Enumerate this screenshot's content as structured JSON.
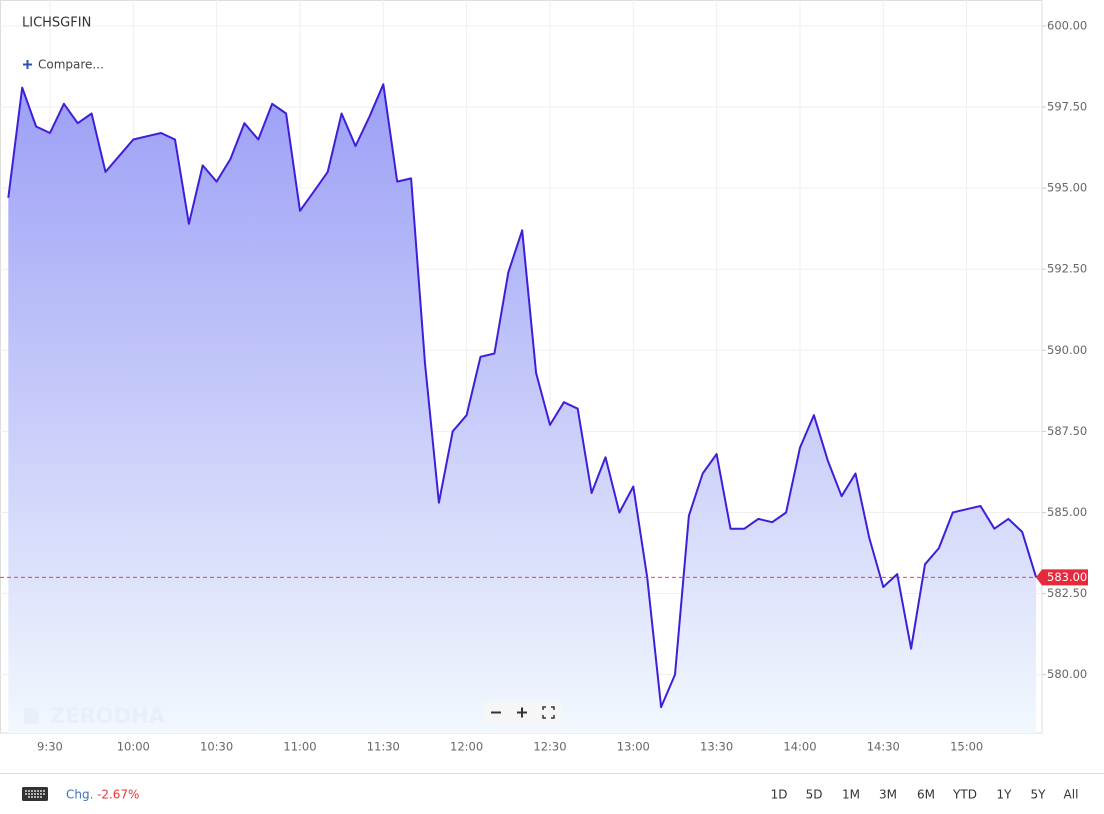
{
  "chart_data": {
    "type": "area",
    "title": "LICHSGFIN",
    "compare_label": "Compare...",
    "watermark": "ZERODHA",
    "color": "#3d1fd9",
    "fill_top": "#9c9ff6",
    "fill_bottom": "#f2f8fd",
    "grid": true,
    "categories": [
      null,
      null,
      null,
      "9:30",
      null,
      null,
      null,
      null,
      null,
      "10:00",
      null,
      null,
      null,
      null,
      null,
      "10:30",
      null,
      null,
      null,
      null,
      null,
      "11:00",
      null,
      null,
      null,
      null,
      null,
      "11:30",
      null,
      null,
      null,
      null,
      null,
      "12:00",
      null,
      null,
      null,
      null,
      null,
      "12:30",
      null,
      null,
      null,
      null,
      null,
      "13:00",
      null,
      null,
      null,
      null,
      null,
      "13:30",
      null,
      null,
      null,
      null,
      null,
      "14:00",
      null,
      null,
      null,
      null,
      null,
      "14:30",
      null,
      null,
      null,
      null,
      null,
      "15:00",
      null,
      null,
      null,
      null,
      null
    ],
    "values": [
      594.7,
      598.1,
      596.9,
      596.7,
      597.6,
      597.0,
      597.3,
      595.5,
      596.0,
      596.5,
      596.6,
      596.7,
      596.5,
      593.9,
      595.7,
      595.2,
      595.9,
      597.0,
      596.5,
      597.6,
      597.3,
      594.3,
      594.9,
      595.5,
      597.3,
      596.3,
      597.2,
      598.2,
      595.2,
      595.3,
      589.6,
      585.3,
      587.5,
      588.0,
      589.8,
      589.9,
      592.4,
      593.7,
      589.3,
      587.7,
      588.4,
      588.2,
      585.6,
      586.7,
      585.0,
      585.8,
      583.0,
      579.0,
      580.0,
      584.9,
      586.2,
      586.8,
      584.5,
      584.5,
      584.8,
      584.7,
      585.0,
      587.0,
      588.0,
      586.6,
      585.5,
      586.2,
      584.2,
      582.7,
      583.1,
      580.8,
      583.4,
      583.9,
      585.0,
      585.1,
      585.2,
      584.5,
      584.8,
      584.4,
      583.0
    ],
    "ylim": [
      578.2,
      600.8
    ],
    "yticks": [
      {
        "value": 580,
        "label": "580.00"
      },
      {
        "value": 582.5,
        "label": "582.50"
      },
      {
        "value": 585,
        "label": "585.00"
      },
      {
        "value": 587.5,
        "label": "587.50"
      },
      {
        "value": 590,
        "label": "590.00"
      },
      {
        "value": 592.5,
        "label": "592.50"
      },
      {
        "value": 595,
        "label": "595.00"
      },
      {
        "value": 597.5,
        "label": "597.50"
      },
      {
        "value": 600,
        "label": "600.00"
      }
    ],
    "last_price": {
      "value": 583,
      "label": "583.00",
      "color": "#e8283b"
    }
  },
  "toolbar": {
    "change_label": "Chg.",
    "change_value": "-2.67%",
    "ranges": [
      "1D",
      "5D",
      "1M",
      "3M",
      "6M",
      "YTD",
      "1Y",
      "5Y",
      "All"
    ]
  }
}
